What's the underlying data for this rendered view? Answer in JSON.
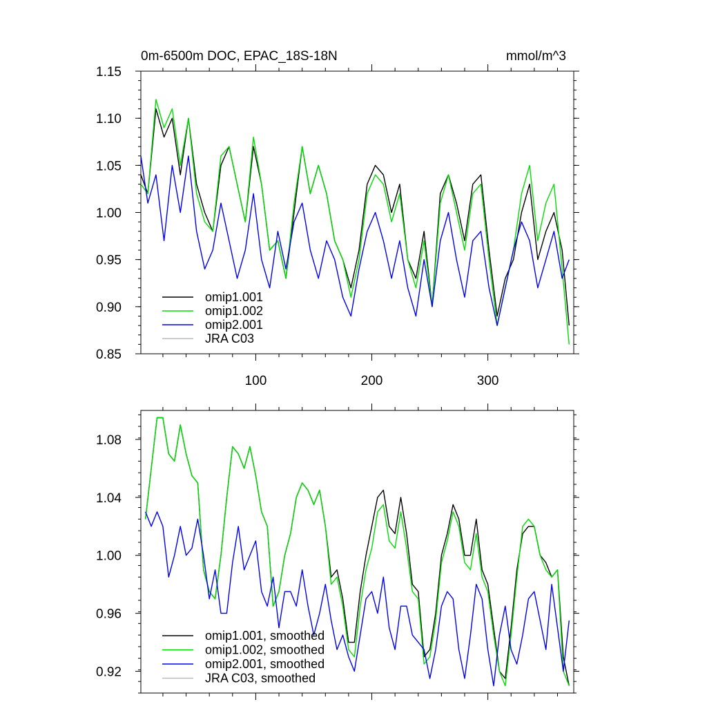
{
  "chart_data": [
    {
      "type": "line",
      "title": "0m-6500m DOC, EPAC_18S-18N",
      "units": "mmol/m^3",
      "xlabel": "",
      "ylabel": "",
      "xlim": [
        1,
        374
      ],
      "ylim": [
        0.85,
        1.15
      ],
      "xticks": [
        100,
        200,
        300
      ],
      "xtick_labels": [
        "100",
        "200",
        "300"
      ],
      "yticks": [
        0.85,
        0.9,
        0.95,
        1.0,
        1.05,
        1.1,
        1.15
      ],
      "ytick_labels": [
        "0.85",
        "0.90",
        "0.95",
        "1.00",
        "1.05",
        "1.10",
        "1.15"
      ],
      "legend": [
        "omip1.001",
        "omip1.002",
        "omip2.001",
        "JRA C03"
      ],
      "legend_position": "bottom-left",
      "series": [
        {
          "name": "omip1.001",
          "color": "#000000",
          "x": [
            1,
            7,
            14,
            21,
            28,
            35,
            42,
            49,
            56,
            63,
            70,
            77,
            84,
            91,
            98,
            105,
            112,
            119,
            126,
            133,
            140,
            147,
            154,
            161,
            168,
            175,
            182,
            189,
            196,
            203,
            210,
            217,
            224,
            231,
            238,
            245,
            252,
            259,
            266,
            273,
            280,
            287,
            294,
            301,
            308,
            315,
            322,
            329,
            336,
            343,
            350,
            357,
            364,
            370
          ],
          "values": [
            1.04,
            1.02,
            1.11,
            1.08,
            1.1,
            1.04,
            1.1,
            1.03,
            1.0,
            0.98,
            1.05,
            1.07,
            1.03,
            0.99,
            1.07,
            1.03,
            0.96,
            0.97,
            0.93,
            1.0,
            1.07,
            1.02,
            1.05,
            1.02,
            0.97,
            0.95,
            0.92,
            0.96,
            1.03,
            1.05,
            1.04,
            1.0,
            1.03,
            0.95,
            0.93,
            0.98,
            0.9,
            1.02,
            1.04,
            1.01,
            0.97,
            1.03,
            1.04,
            0.96,
            0.89,
            0.93,
            0.95,
            1.0,
            1.03,
            0.95,
            0.98,
            1.0,
            0.96,
            0.88
          ]
        },
        {
          "name": "omip1.002",
          "color": "#00dd00",
          "x": [
            1,
            7,
            14,
            21,
            28,
            35,
            42,
            49,
            56,
            63,
            70,
            77,
            84,
            91,
            98,
            105,
            112,
            119,
            126,
            133,
            140,
            147,
            154,
            161,
            168,
            175,
            182,
            189,
            196,
            203,
            210,
            217,
            224,
            231,
            238,
            245,
            252,
            259,
            266,
            273,
            280,
            287,
            294,
            301,
            308,
            315,
            322,
            329,
            336,
            343,
            350,
            357,
            364,
            370
          ],
          "values": [
            1.03,
            1.02,
            1.12,
            1.09,
            1.11,
            1.05,
            1.1,
            1.02,
            0.99,
            0.98,
            1.06,
            1.07,
            1.03,
            0.99,
            1.08,
            1.03,
            0.96,
            0.97,
            0.93,
            1.01,
            1.07,
            1.02,
            1.05,
            1.02,
            0.97,
            0.95,
            0.91,
            0.95,
            1.02,
            1.04,
            1.03,
            0.99,
            1.02,
            0.95,
            0.92,
            0.97,
            0.9,
            1.01,
            1.04,
            1.0,
            0.96,
            1.02,
            1.03,
            0.95,
            0.88,
            0.92,
            0.96,
            1.02,
            1.05,
            0.97,
            1.01,
            1.03,
            0.94,
            0.86
          ]
        },
        {
          "name": "omip2.001",
          "color": "#0000ee",
          "x": [
            1,
            7,
            14,
            21,
            28,
            35,
            42,
            49,
            56,
            63,
            70,
            77,
            84,
            91,
            98,
            105,
            112,
            119,
            126,
            133,
            140,
            147,
            154,
            161,
            168,
            175,
            182,
            189,
            196,
            203,
            210,
            217,
            224,
            231,
            238,
            245,
            252,
            259,
            266,
            273,
            280,
            287,
            294,
            301,
            308,
            315,
            322,
            329,
            336,
            343,
            350,
            357,
            364,
            370
          ],
          "values": [
            1.06,
            1.01,
            1.04,
            0.97,
            1.05,
            1.0,
            1.06,
            0.98,
            0.94,
            0.96,
            1.01,
            0.97,
            0.93,
            0.96,
            1.02,
            0.95,
            0.92,
            0.98,
            0.94,
            0.99,
            1.01,
            0.96,
            0.93,
            0.97,
            0.95,
            0.91,
            0.89,
            0.94,
            0.98,
            1.0,
            0.97,
            0.93,
            0.97,
            0.92,
            0.89,
            0.95,
            0.9,
            0.97,
            1.0,
            0.95,
            0.91,
            0.97,
            0.98,
            0.92,
            0.88,
            0.92,
            0.96,
            0.99,
            0.97,
            0.92,
            0.95,
            0.98,
            0.93,
            0.95
          ]
        },
        {
          "name": "JRA C03",
          "color": "#bbbbbb",
          "x": [],
          "values": []
        }
      ]
    },
    {
      "type": "line",
      "title": "",
      "xlabel": "",
      "ylabel": "",
      "xlim": [
        1,
        374
      ],
      "ylim": [
        0.905,
        1.1
      ],
      "xticks": [
        100,
        200,
        300
      ],
      "yticks": [
        0.92,
        0.96,
        1.0,
        1.04,
        1.08
      ],
      "ytick_labels": [
        "0.92",
        "0.96",
        "1.00",
        "1.04",
        "1.08"
      ],
      "legend": [
        "omip1.001, smoothed",
        "omip1.002, smoothed",
        "omip2.001, smoothed",
        "JRA C03, smoothed"
      ],
      "legend_position": "bottom-left",
      "series": [
        {
          "name": "omip1.001, smoothed",
          "color": "#000000",
          "x": [
            5,
            10,
            15,
            20,
            25,
            30,
            35,
            40,
            45,
            50,
            55,
            60,
            65,
            70,
            75,
            80,
            85,
            90,
            95,
            100,
            105,
            110,
            115,
            120,
            125,
            130,
            135,
            140,
            145,
            150,
            155,
            160,
            165,
            170,
            175,
            180,
            185,
            190,
            195,
            200,
            205,
            210,
            215,
            220,
            225,
            230,
            235,
            240,
            245,
            250,
            255,
            260,
            265,
            270,
            275,
            280,
            285,
            290,
            295,
            300,
            305,
            310,
            315,
            320,
            325,
            330,
            335,
            340,
            345,
            350,
            355,
            360,
            365,
            370
          ],
          "values": [
            1.025,
            1.06,
            1.095,
            1.095,
            1.07,
            1.065,
            1.09,
            1.07,
            1.055,
            1.05,
            0.99,
            0.975,
            0.97,
            1.0,
            1.04,
            1.075,
            1.07,
            1.06,
            1.075,
            1.055,
            1.03,
            1.02,
            0.965,
            0.975,
            1.0,
            1.015,
            1.04,
            1.05,
            1.045,
            1.035,
            1.045,
            1.02,
            0.985,
            0.99,
            0.97,
            0.94,
            0.94,
            0.975,
            1.0,
            1.02,
            1.04,
            1.045,
            1.02,
            1.015,
            1.04,
            1.015,
            0.98,
            0.975,
            0.93,
            0.935,
            0.96,
            1.0,
            1.015,
            1.035,
            1.025,
            1.0,
            1.0,
            1.025,
            0.99,
            0.98,
            0.95,
            0.92,
            0.915,
            0.95,
            0.99,
            1.015,
            1.02,
            1.02,
            1.0,
            0.995,
            0.985,
            0.99,
            0.93,
            0.91
          ]
        },
        {
          "name": "omip1.002, smoothed",
          "color": "#00dd00",
          "x": [
            5,
            10,
            15,
            20,
            25,
            30,
            35,
            40,
            45,
            50,
            55,
            60,
            65,
            70,
            75,
            80,
            85,
            90,
            95,
            100,
            105,
            110,
            115,
            120,
            125,
            130,
            135,
            140,
            145,
            150,
            155,
            160,
            165,
            170,
            175,
            180,
            185,
            190,
            195,
            200,
            205,
            210,
            215,
            220,
            225,
            230,
            235,
            240,
            245,
            250,
            255,
            260,
            265,
            270,
            275,
            280,
            285,
            290,
            295,
            300,
            305,
            310,
            315,
            320,
            325,
            330,
            335,
            340,
            345,
            350,
            355,
            360,
            365,
            370
          ],
          "values": [
            1.025,
            1.06,
            1.095,
            1.095,
            1.07,
            1.065,
            1.09,
            1.07,
            1.055,
            1.05,
            0.99,
            0.975,
            0.97,
            1.0,
            1.04,
            1.075,
            1.07,
            1.06,
            1.075,
            1.055,
            1.03,
            1.02,
            0.965,
            0.975,
            1.0,
            1.015,
            1.04,
            1.05,
            1.045,
            1.035,
            1.045,
            1.02,
            0.98,
            0.985,
            0.965,
            0.935,
            0.93,
            0.965,
            0.99,
            1.005,
            1.03,
            1.035,
            1.01,
            1.005,
            1.03,
            1.005,
            0.975,
            0.97,
            0.925,
            0.93,
            0.955,
            0.995,
            1.01,
            1.03,
            1.02,
            0.995,
            0.99,
            1.015,
            0.985,
            0.975,
            0.945,
            0.92,
            0.91,
            0.945,
            0.985,
            1.02,
            1.025,
            1.02,
            1.0,
            0.99,
            0.985,
            0.99,
            0.92,
            0.91
          ]
        },
        {
          "name": "omip2.001, smoothed",
          "color": "#0000ee",
          "x": [
            5,
            10,
            15,
            20,
            25,
            30,
            35,
            40,
            45,
            50,
            55,
            60,
            65,
            70,
            75,
            80,
            85,
            90,
            95,
            100,
            105,
            110,
            115,
            120,
            125,
            130,
            135,
            140,
            145,
            150,
            155,
            160,
            165,
            170,
            175,
            180,
            185,
            190,
            195,
            200,
            205,
            210,
            215,
            220,
            225,
            230,
            235,
            240,
            245,
            250,
            255,
            260,
            265,
            270,
            275,
            280,
            285,
            290,
            295,
            300,
            305,
            310,
            315,
            320,
            325,
            330,
            335,
            340,
            345,
            350,
            355,
            360,
            365,
            370
          ],
          "values": [
            1.03,
            1.02,
            1.03,
            1.02,
            0.985,
            1.0,
            1.02,
            1.0,
            1.005,
            1.025,
            1.0,
            0.97,
            0.99,
            0.96,
            0.96,
            0.995,
            1.02,
            0.99,
            1.0,
            1.01,
            0.975,
            0.965,
            0.985,
            0.95,
            0.975,
            0.975,
            0.965,
            0.99,
            0.965,
            0.945,
            0.96,
            0.98,
            0.955,
            0.935,
            0.945,
            0.93,
            0.92,
            0.945,
            0.97,
            0.975,
            0.96,
            0.985,
            0.95,
            0.935,
            0.965,
            0.965,
            0.945,
            0.94,
            0.935,
            0.915,
            0.935,
            0.965,
            0.975,
            0.97,
            0.935,
            0.915,
            0.945,
            0.98,
            0.97,
            0.935,
            0.91,
            0.945,
            0.965,
            0.935,
            0.925,
            0.945,
            0.97,
            0.975,
            0.955,
            0.935,
            0.98,
            0.95,
            0.92,
            0.955
          ]
        },
        {
          "name": "JRA C03, smoothed",
          "color": "#bbbbbb",
          "x": [],
          "values": []
        }
      ]
    }
  ]
}
